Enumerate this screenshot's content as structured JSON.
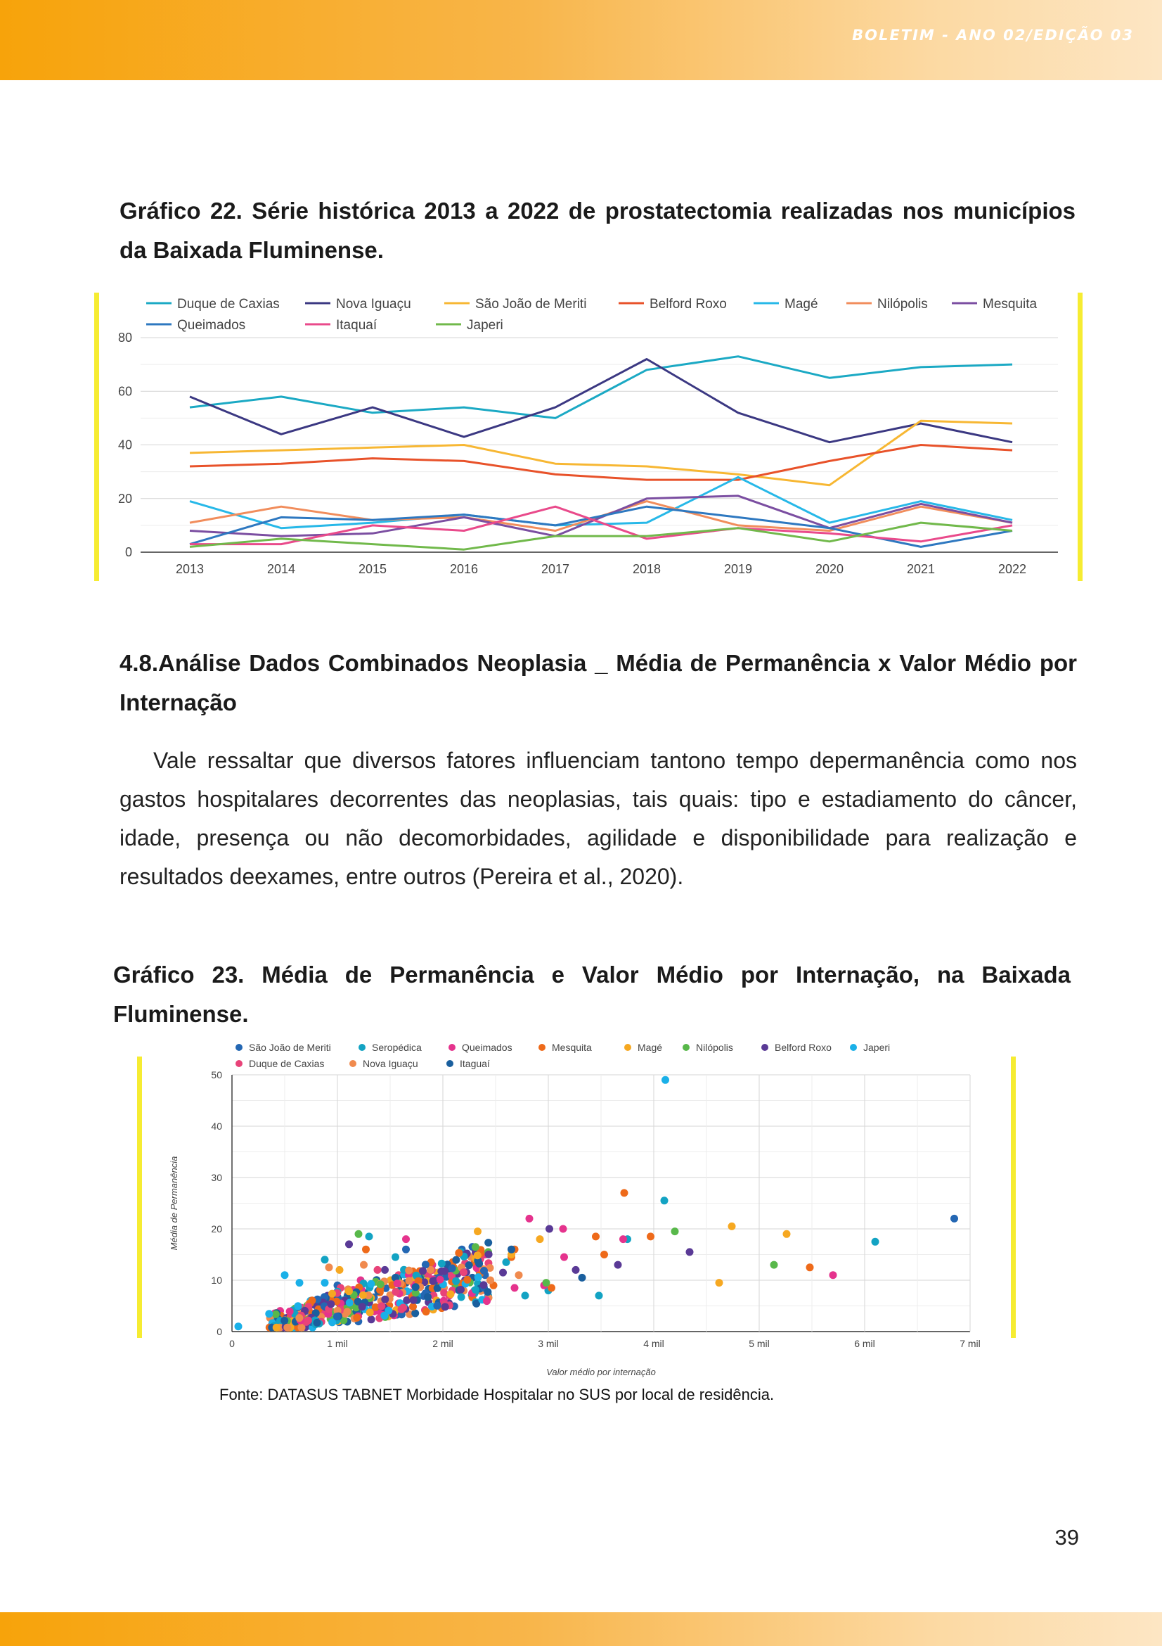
{
  "header": {
    "bulletin_label": "BOLETIM - ANO 02/EDIÇÃO 03"
  },
  "chart1": {
    "caption": "Gráfico 22. Série histórica 2013 a 2022 de prostatectomia realizadas nos municípios da Baixada Fluminense."
  },
  "section": {
    "title": "4.8.Análise Dados Combinados Neoplasia _ Média de Permanência x Valor Médio por Internação",
    "paragraph": "Vale ressaltar que diversos fatores influenciam tantono tempo depermanência como nos gastos hospitalares decorrentes das neoplasias, tais quais: tipo e estadiamento do câncer, idade, presença ou não decomorbidades, agilidade e disponibilidade para realização e resultados deexames, entre outros (Pereira et al., 2020)."
  },
  "chart2": {
    "caption": "Gráfico 23. Média de Permanência e Valor Médio por Internação, na Baixada Fluminense.",
    "source": "Fonte: DATASUS TABNET Morbidade Hospitalar no SUS por local de residência."
  },
  "page_number": "39",
  "chart_data": [
    {
      "type": "line",
      "title": "",
      "xlabel": "",
      "ylabel": "",
      "x": [
        2013,
        2014,
        2015,
        2016,
        2017,
        2018,
        2019,
        2020,
        2021,
        2022
      ],
      "ylim": [
        0,
        80
      ],
      "yticks": [
        0,
        20,
        40,
        60,
        80
      ],
      "grid": true,
      "legend": "top",
      "series": [
        {
          "name": "Duque de Caxias",
          "color": "#1ba9c4",
          "values": [
            54,
            58,
            52,
            54,
            50,
            68,
            73,
            65,
            69,
            70
          ]
        },
        {
          "name": "Nova Iguaçu",
          "color": "#3b3882",
          "values": [
            58,
            44,
            54,
            43,
            54,
            72,
            52,
            41,
            48,
            41
          ]
        },
        {
          "name": "São João de Meriti",
          "color": "#f7b733",
          "values": [
            37,
            38,
            39,
            40,
            33,
            32,
            29,
            25,
            49,
            48
          ]
        },
        {
          "name": "Belford Roxo",
          "color": "#e8522a",
          "values": [
            32,
            33,
            35,
            34,
            29,
            27,
            27,
            34,
            40,
            38
          ]
        },
        {
          "name": "Magé",
          "color": "#27b8e8",
          "values": [
            19,
            9,
            11,
            14,
            10,
            11,
            28,
            11,
            19,
            12
          ]
        },
        {
          "name": "Nilópolis",
          "color": "#f18d5c",
          "values": [
            11,
            17,
            12,
            13,
            8,
            19,
            10,
            8,
            17,
            11
          ]
        },
        {
          "name": "Mesquita",
          "color": "#7b4ea1",
          "values": [
            8,
            6,
            7,
            13,
            6,
            20,
            21,
            9,
            18,
            11
          ]
        },
        {
          "name": "Queimados",
          "color": "#2e78c0",
          "values": [
            3,
            13,
            12,
            14,
            10,
            17,
            13,
            9,
            2,
            8
          ]
        },
        {
          "name": "Itaquaí",
          "color": "#e94a8b",
          "values": [
            3,
            3,
            10,
            8,
            17,
            5,
            9,
            7,
            4,
            10
          ]
        },
        {
          "name": "Japeri",
          "color": "#71b94b",
          "values": [
            2,
            5,
            3,
            1,
            6,
            6,
            9,
            4,
            11,
            8
          ]
        }
      ]
    },
    {
      "type": "scatter",
      "title": "",
      "xlabel": "Valor médio por internação",
      "ylabel": "Média de Permanência",
      "xlim": [
        0,
        7000
      ],
      "ylim": [
        0,
        50
      ],
      "xticks": [
        0,
        1000,
        2000,
        3000,
        4000,
        5000,
        6000,
        7000
      ],
      "xtick_labels": [
        "0",
        "1 mil",
        "2 mil",
        "3 mil",
        "4 mil",
        "5 mil",
        "6 mil",
        "7 mil"
      ],
      "yticks": [
        0,
        10,
        20,
        30,
        40,
        50
      ],
      "grid": true,
      "legend": "top",
      "series": [
        {
          "name": "São João de Meriti",
          "color": "#2467b3",
          "points": [
            [
              6850,
              22
            ],
            [
              2180,
              16
            ],
            [
              2280,
              16.5
            ],
            [
              2400,
              11
            ],
            [
              1900,
              8
            ],
            [
              1000,
              9
            ],
            [
              1650,
              16
            ]
          ]
        },
        {
          "name": "Seropédica",
          "color": "#13a3c3",
          "points": [
            [
              4100,
              25.5
            ],
            [
              6100,
              17.5
            ],
            [
              3750,
              18
            ],
            [
              2600,
              13.5
            ],
            [
              1300,
              18.5
            ],
            [
              880,
              14
            ],
            [
              2430,
              7
            ],
            [
              3480,
              7
            ],
            [
              2780,
              7
            ],
            [
              2300,
              8
            ],
            [
              1420,
              4
            ],
            [
              2340,
              12
            ],
            [
              3000,
              8
            ],
            [
              2170,
              15.5
            ],
            [
              1550,
              14.5
            ]
          ]
        },
        {
          "name": "Queimados",
          "color": "#e5338d",
          "points": [
            [
              2820,
              22
            ],
            [
              3140,
              20
            ],
            [
              3710,
              18
            ],
            [
              5700,
              11
            ],
            [
              3150,
              14.5
            ],
            [
              2680,
              8.5
            ],
            [
              2400,
              15
            ],
            [
              1650,
              18
            ],
            [
              1220,
              10
            ],
            [
              1900,
              13
            ],
            [
              1580,
              5.5
            ],
            [
              2960,
              9
            ]
          ]
        },
        {
          "name": "Mesquita",
          "color": "#ee6a1a",
          "points": [
            [
              3720,
              27
            ],
            [
              3450,
              18.5
            ],
            [
              3970,
              18.5
            ],
            [
              5480,
              12.5
            ],
            [
              3530,
              15
            ],
            [
              2650,
              14.5
            ],
            [
              2680,
              16
            ],
            [
              3030,
              8.5
            ],
            [
              1270,
              16
            ],
            [
              1700,
              11
            ],
            [
              2480,
              9
            ]
          ]
        },
        {
          "name": "Magé",
          "color": "#f6a821",
          "points": [
            [
              4740,
              20.5
            ],
            [
              5260,
              19
            ],
            [
              4620,
              9.5
            ],
            [
              2330,
              19.5
            ],
            [
              2920,
              18
            ],
            [
              2650,
              15
            ],
            [
              1950,
              11.5
            ],
            [
              1020,
              12
            ]
          ]
        },
        {
          "name": "Nilópolis",
          "color": "#58b84a",
          "points": [
            [
              4200,
              19.5
            ],
            [
              5140,
              13
            ],
            [
              2980,
              9.5
            ],
            [
              2430,
              15.5
            ],
            [
              1200,
              19
            ],
            [
              1800,
              11
            ],
            [
              2120,
              9
            ],
            [
              2350,
              12
            ]
          ]
        },
        {
          "name": "Belford Roxo",
          "color": "#5a3a96",
          "points": [
            [
              3010,
              20
            ],
            [
              4340,
              15.5
            ],
            [
              3660,
              13
            ],
            [
              3260,
              12
            ],
            [
              2570,
              11.5
            ],
            [
              2210,
              10
            ],
            [
              1110,
              17
            ],
            [
              1450,
              12
            ]
          ]
        },
        {
          "name": "Japeri",
          "color": "#1ab0e8",
          "points": [
            [
              4110,
              49
            ],
            [
              60,
              1
            ],
            [
              500,
              11
            ],
            [
              880,
              9.5
            ],
            [
              1150,
              6
            ],
            [
              640,
              9.5
            ]
          ]
        },
        {
          "name": "Duque de Caxias",
          "color": "#e84379",
          "points": [
            [
              1580,
              11
            ],
            [
              1380,
              12
            ],
            [
              1030,
              8.5
            ],
            [
              1860,
              11
            ],
            [
              2090,
              8
            ]
          ]
        },
        {
          "name": "Nova Iguaçu",
          "color": "#f08a4e",
          "points": [
            [
              1530,
              10
            ],
            [
              1250,
              13
            ],
            [
              920,
              12.5
            ],
            [
              2010,
              8.5
            ],
            [
              2450,
              10
            ],
            [
              2720,
              11
            ]
          ]
        },
        {
          "name": "Itaguaí",
          "color": "#1a5f9e",
          "points": [
            [
              3320,
              10.5
            ],
            [
              1650,
              9.5
            ],
            [
              1260,
              7.5
            ],
            [
              2280,
              10.5
            ],
            [
              2650,
              16
            ]
          ]
        }
      ]
    }
  ]
}
